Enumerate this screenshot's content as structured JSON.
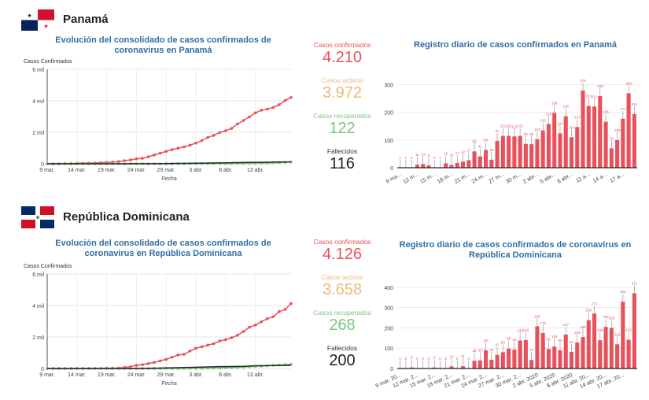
{
  "colors": {
    "confirmed": "#e8505b",
    "active": "#f0b97a",
    "recovered": "#7cc67a",
    "deaths": "#222222",
    "title": "#2f6ea5"
  },
  "sections": [
    {
      "country": "Panamá",
      "flag": "panama-flag",
      "line_title": "Evolución del consolidado de casos confirmados de coronavirus en Panamá",
      "stats": [
        {
          "label": "Casos confirmados",
          "value": "4.210"
        },
        {
          "label": "Casos activos",
          "value": "3.972"
        },
        {
          "label": "Casos recuperados",
          "value": "122"
        },
        {
          "label": "Fallecidos",
          "value": "116"
        }
      ],
      "bar_title": "Registro diario de casos confirmados en Panamá"
    },
    {
      "country": "República Dominicana",
      "flag": "dominican-republic-flag",
      "line_title": "Evolución del consolidado de casos confirmados de coronavirus en República Dominicana",
      "stats": [
        {
          "label": "Casos confirmados",
          "value": "4.126"
        },
        {
          "label": "Casos activos",
          "value": "3.658"
        },
        {
          "label": "Casos recuperados",
          "value": "268"
        },
        {
          "label": "Fallecidos",
          "value": "200"
        }
      ],
      "bar_title": "Registro diario de casos confirmados de coronavirus en República Dominicana"
    }
  ],
  "chart_data": [
    {
      "type": "line",
      "title": "Evolución del consolidado de casos confirmados de coronavirus en Panamá",
      "ylabel": "Casos Confirmados",
      "xlabel": "Fecha",
      "ylim": [
        0,
        6000
      ],
      "yticks": [
        "0",
        "2 mil",
        "4 mil",
        "6 mil"
      ],
      "xticks": [
        "9 mar.",
        "14 mar.",
        "19 mar.",
        "24 mar.",
        "29 mar.",
        "3 abr.",
        "8 abr.",
        "13 abr."
      ],
      "grid": true,
      "series": [
        {
          "key": "confirmed",
          "values": [
            1,
            1,
            1,
            8,
            14,
            27,
            36,
            43,
            55,
            69,
            86,
            109,
            137,
            200,
            245,
            313,
            345,
            443,
            558,
            674,
            786,
            901,
            989,
            1075,
            1181,
            1317,
            1475,
            1673,
            1801,
            1988,
            2100,
            2249,
            2528,
            2752,
            2974,
            3234,
            3400,
            3472,
            3574,
            3751,
            4016,
            4210
          ]
        },
        {
          "key": "recovered",
          "values": [
            0,
            0,
            0,
            0,
            0,
            0,
            0,
            0,
            0,
            0,
            0,
            0,
            0,
            0,
            0,
            0,
            0,
            0,
            0,
            0,
            1,
            2,
            2,
            4,
            6,
            9,
            10,
            10,
            13,
            13,
            14,
            15,
            16,
            17,
            19,
            24,
            30,
            42,
            60,
            80,
            100,
            122
          ]
        },
        {
          "key": "deaths",
          "values": [
            0,
            0,
            0,
            1,
            1,
            1,
            1,
            1,
            1,
            1,
            1,
            1,
            3,
            3,
            6,
            6,
            7,
            8,
            8,
            8,
            14,
            17,
            24,
            27,
            32,
            37,
            38,
            42,
            47,
            55,
            59,
            66,
            74,
            79,
            87,
            94,
            95,
            103,
            109,
            110,
            112,
            116
          ]
        }
      ]
    },
    {
      "type": "bar",
      "title": "Registro diario de casos confirmados en Panamá",
      "ylim": [
        0,
        350
      ],
      "yticks": [
        0,
        100,
        200,
        300
      ],
      "xticks": [
        "9 ma...",
        "12 m...",
        "15 m...",
        "18 m...",
        "21 m...",
        "24 m...",
        "27 m...",
        "30 m...",
        "2 abr...",
        "5 abr...",
        "8 abr...",
        "11 a...",
        "14 a...",
        "17 a..."
      ],
      "values": [
        1,
        1,
        0,
        11,
        13,
        8,
        0,
        1,
        16,
        10,
        17,
        22,
        27,
        59,
        41,
        64,
        29,
        97,
        115,
        115,
        113,
        115,
        86,
        85,
        103,
        135,
        158,
        198,
        124,
        186,
        110,
        147,
        279,
        223,
        221,
        259,
        166,
        70,
        100,
        177,
        269,
        194
      ]
    },
    {
      "type": "line",
      "title": "Evolución del consolidado de casos confirmados de coronavirus en República Dominicana",
      "ylabel": "Casos Confirmados",
      "xlabel": "Fecha",
      "ylim": [
        0,
        6000
      ],
      "yticks": [
        "0",
        "2 mil",
        "4 mil",
        "6 mil"
      ],
      "xticks": [
        "9 mar.",
        "14 mar.",
        "19 mar.",
        "24 mar.",
        "29 mar.",
        "3 abr.",
        "8 abr.",
        "13 abr."
      ],
      "grid": true,
      "series": [
        {
          "key": "confirmed",
          "values": [
            1,
            1,
            1,
            1,
            2,
            5,
            5,
            5,
            11,
            11,
            21,
            21,
            34,
            72,
            112,
            202,
            245,
            312,
            392,
            488,
            581,
            719,
            859,
            901,
            1109,
            1284,
            1380,
            1488,
            1578,
            1745,
            1828,
            1956,
            2111,
            2349,
            2620,
            2759,
            2967,
            3167,
            3286,
            3614,
            3755,
            4126
          ]
        },
        {
          "key": "recovered",
          "values": [
            0,
            0,
            0,
            0,
            0,
            0,
            0,
            0,
            0,
            0,
            0,
            0,
            0,
            0,
            0,
            0,
            0,
            0,
            1,
            3,
            3,
            3,
            4,
            4,
            4,
            5,
            15,
            16,
            22,
            30,
            44,
            55,
            70,
            90,
            110,
            130,
            155,
            180,
            205,
            225,
            250,
            268
          ]
        },
        {
          "key": "deaths",
          "values": [
            0,
            0,
            0,
            0,
            0,
            0,
            0,
            0,
            0,
            1,
            1,
            2,
            2,
            3,
            3,
            6,
            10,
            10,
            20,
            28,
            39,
            42,
            51,
            60,
            68,
            82,
            86,
            98,
            108,
            118,
            120,
            126,
            130,
            135,
            157,
            173,
            177,
            183,
            189,
            192,
            196,
            200
          ]
        }
      ]
    },
    {
      "type": "bar",
      "title": "Registro diario de casos confirmados de coronavirus en República Dominicana",
      "ylim": [
        0,
        450
      ],
      "yticks": [
        0,
        100,
        200,
        300,
        400
      ],
      "xticks": [
        "9 mar. 20...",
        "12 mar. 2...",
        "15 mar. 2...",
        "18 mar. 2...",
        "21 mar. 2...",
        "24 mar. 2...",
        "27 mar. 2...",
        "30 mar. 2...",
        "2 abr. 2020",
        "5 abr. 2020",
        "8 abr. 2020",
        "11 abr. 20...",
        "14 abr. 20...",
        "17 abr. 20..."
      ],
      "values": [
        0,
        0,
        5,
        0,
        0,
        0,
        5,
        0,
        0,
        10,
        0,
        11,
        0,
        38,
        40,
        90,
        43,
        67,
        80,
        98,
        93,
        138,
        140,
        42,
        208,
        175,
        96,
        108,
        90,
        167,
        82,
        128,
        155,
        238,
        271,
        139,
        205,
        200,
        119,
        329,
        141,
        371
      ]
    }
  ]
}
